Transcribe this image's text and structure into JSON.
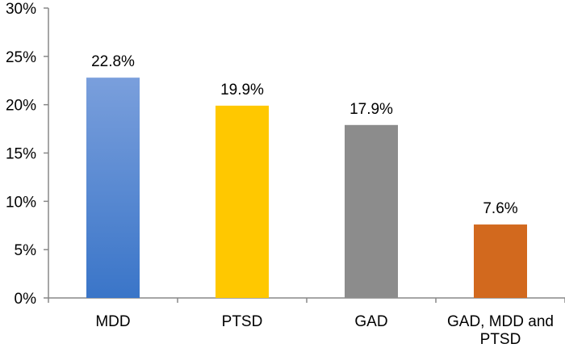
{
  "chart_data": {
    "type": "bar",
    "categories": [
      "MDD",
      "PTSD",
      "GAD",
      "GAD, MDD and PTSD"
    ],
    "category_lines": [
      [
        "MDD"
      ],
      [
        "PTSD"
      ],
      [
        "GAD"
      ],
      [
        "GAD, MDD and",
        "PTSD"
      ]
    ],
    "values": [
      22.8,
      19.9,
      17.9,
      7.6
    ],
    "data_labels": [
      "22.8%",
      "19.9%",
      "17.9%",
      "7.6%"
    ],
    "colors": [
      "#4a7fd4",
      "#ffc800",
      "#8c8c8c",
      "#d2691e"
    ],
    "title": "",
    "xlabel": "",
    "ylabel": "",
    "ylim": [
      0,
      30
    ],
    "yticks": [
      0,
      5,
      10,
      15,
      20,
      25,
      30
    ],
    "ytick_labels": [
      "0%",
      "5%",
      "10%",
      "15%",
      "20%",
      "25%",
      "30%"
    ],
    "grid": false,
    "legend": "none"
  }
}
